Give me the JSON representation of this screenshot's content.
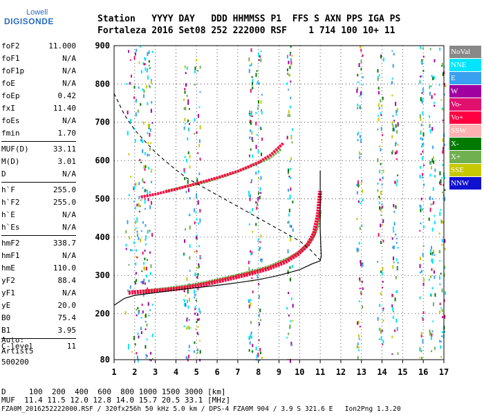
{
  "logo": {
    "line1": "Lowell",
    "line2": "DIGISONDE"
  },
  "header": {
    "line1": "Station   YYYY DAY   DDD HHMMSS P1  FFS S AXN PPS IGA PS",
    "line2": "Fortaleza 2016 Set08 252 222000 RSF    1 714 100 10+ 11"
  },
  "params": [
    {
      "group": [
        [
          "foF2",
          "11.000"
        ],
        [
          "foF1",
          "N/A"
        ],
        [
          "foF1p",
          "N/A"
        ],
        [
          "foE",
          "N/A"
        ],
        [
          "foEp",
          "0.42"
        ],
        [
          "fxI",
          "11.40"
        ],
        [
          "foEs",
          "N/A"
        ],
        [
          "fmin",
          "1.70"
        ]
      ]
    },
    {
      "group": [
        [
          "MUF(D)",
          "33.11"
        ],
        [
          "M(D)",
          "3.01"
        ],
        [
          "D",
          "N/A"
        ]
      ]
    },
    {
      "group": [
        [
          "h`F",
          "255.0"
        ],
        [
          "h`F2",
          "255.0"
        ],
        [
          "h`E",
          "N/A"
        ],
        [
          "h`Es",
          "N/A"
        ]
      ]
    },
    {
      "group": [
        [
          "hmF2",
          "338.7"
        ],
        [
          "hmF1",
          "N/A"
        ],
        [
          "hmE",
          "110.0"
        ],
        [
          "yF2",
          "88.4"
        ],
        [
          "yF1",
          "N/A"
        ],
        [
          "yE",
          "20.0"
        ],
        [
          "B0",
          "75.4"
        ],
        [
          "B1",
          "3.95"
        ]
      ]
    },
    {
      "group": [
        [
          "C-level",
          "11"
        ]
      ]
    }
  ],
  "autoscale": {
    "line1": "Auto:",
    "line2": "Artist5",
    "line3": "500200"
  },
  "legend": [
    {
      "label": "NoVal",
      "color": "#888888"
    },
    {
      "label": "NNE",
      "color": "#00e5ff"
    },
    {
      "label": "E",
      "color": "#3aa0f0"
    },
    {
      "label": "W",
      "color": "#a000a0"
    },
    {
      "label": "Vo-",
      "color": "#e0106e"
    },
    {
      "label": "Vo+",
      "color": "#ff0040"
    },
    {
      "label": "SSW",
      "color": "#ffb0b0"
    },
    {
      "label": "X-",
      "color": "#007a00"
    },
    {
      "label": "X+",
      "color": "#70b050"
    },
    {
      "label": "SSE",
      "color": "#c8c800"
    },
    {
      "label": "NNW",
      "color": "#1010d0"
    }
  ],
  "footer": {
    "line1": "D     100  200  400  600  800 1000 1500 3000 [km]",
    "line2": "MUF  11.4 11.5 12.0 12.8 14.0 15.7 20.5 33.1 [MHz]",
    "line3": "FZA0M_2016252222000.RSF / 320fx256h 50 kHz 5.0 km / DPS-4 FZA0M 904 / 3.9 S 321.6 E   Ion2Png 1.3.20"
  },
  "chart_data": {
    "type": "scatter",
    "x_ticks": [
      1,
      2,
      3,
      4,
      5,
      6,
      7,
      8,
      9,
      10,
      11,
      12,
      13,
      14,
      15,
      16,
      17
    ],
    "y_ticks": [
      80,
      200,
      300,
      400,
      500,
      600,
      700,
      800,
      900
    ],
    "xlim": [
      1,
      17
    ],
    "ylim": [
      80,
      900
    ],
    "x_tick_labels_numeric": true,
    "o_trace": {
      "name": "Vo+",
      "lower": [
        [
          1.7,
          255
        ],
        [
          2.5,
          258
        ],
        [
          3.5,
          262
        ],
        [
          4.5,
          268
        ],
        [
          5.5,
          278
        ],
        [
          6.5,
          290
        ],
        [
          7.5,
          303
        ],
        [
          8.5,
          318
        ],
        [
          9.3,
          335
        ],
        [
          9.9,
          355
        ],
        [
          10.4,
          380
        ],
        [
          10.7,
          410
        ],
        [
          10.9,
          460
        ],
        [
          11.0,
          520
        ]
      ],
      "upper": [
        [
          2.3,
          505
        ],
        [
          3.0,
          512
        ],
        [
          4.0,
          525
        ],
        [
          5.0,
          540
        ],
        [
          6.0,
          555
        ],
        [
          7.0,
          572
        ],
        [
          8.0,
          595
        ],
        [
          8.6,
          615
        ],
        [
          9.2,
          645
        ]
      ]
    },
    "x_trace": {
      "name": "X+",
      "lower": [
        [
          2.4,
          258
        ],
        [
          3.5,
          265
        ],
        [
          4.5,
          272
        ],
        [
          5.5,
          282
        ],
        [
          6.5,
          294
        ],
        [
          7.5,
          307
        ],
        [
          8.5,
          322
        ],
        [
          9.5,
          345
        ],
        [
          10.1,
          365
        ],
        [
          10.6,
          395
        ],
        [
          10.9,
          430
        ],
        [
          11.0,
          470
        ]
      ],
      "upper": [
        [
          3.5,
          520
        ],
        [
          4.5,
          532
        ],
        [
          5.5,
          545
        ],
        [
          6.5,
          562
        ],
        [
          7.5,
          582
        ],
        [
          8.5,
          605
        ],
        [
          9.1,
          630
        ]
      ]
    },
    "profile_solid": [
      [
        1.0,
        222
      ],
      [
        1.5,
        240
      ],
      [
        2.0,
        248
      ],
      [
        3.0,
        255
      ],
      [
        4.0,
        262
      ],
      [
        5.0,
        268
      ],
      [
        6.0,
        274
      ],
      [
        7.0,
        281
      ],
      [
        8.0,
        289
      ],
      [
        9.0,
        300
      ],
      [
        10.0,
        315
      ],
      [
        10.6,
        330
      ],
      [
        11.0,
        338
      ],
      [
        11.05,
        350
      ],
      [
        11.0,
        420
      ],
      [
        11.0,
        500
      ],
      [
        11.0,
        573
      ]
    ],
    "profile_dashed": [
      [
        1.0,
        775
      ],
      [
        1.5,
        720
      ],
      [
        2.0,
        680
      ],
      [
        2.5,
        650
      ],
      [
        3.0,
        622
      ],
      [
        3.5,
        598
      ],
      [
        4.0,
        576
      ],
      [
        4.5,
        555
      ],
      [
        5.0,
        540
      ],
      [
        6.0,
        510
      ],
      [
        7.0,
        480
      ],
      [
        8.0,
        450
      ],
      [
        9.0,
        420
      ],
      [
        10.0,
        390
      ],
      [
        10.5,
        368
      ],
      [
        11.0,
        340
      ]
    ]
  }
}
